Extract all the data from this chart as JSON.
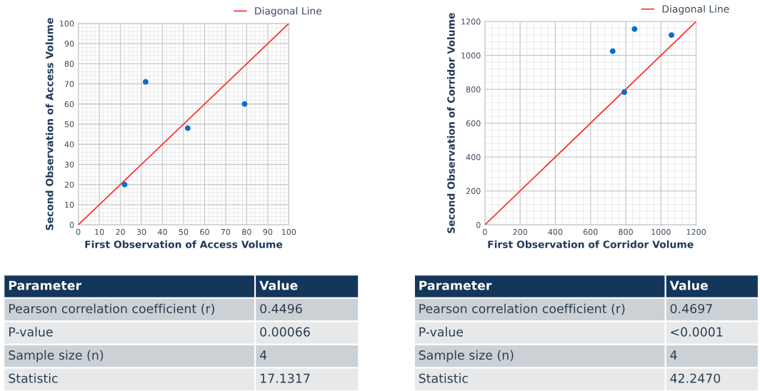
{
  "chart_data": [
    {
      "type": "scatter",
      "xlabel": "First Observation of Access Volume",
      "ylabel": "Second Observation of Access Volume",
      "xlim": [
        0,
        100
      ],
      "ylim": [
        0,
        100
      ],
      "xticks": [
        0,
        10,
        20,
        30,
        40,
        50,
        60,
        70,
        80,
        90,
        100
      ],
      "yticks": [
        0,
        10,
        20,
        30,
        40,
        50,
        60,
        70,
        80,
        90,
        100
      ],
      "grid": true,
      "legend": "top right",
      "series": [
        {
          "color": "#0a6ec8",
          "x": [
            22,
            32,
            52,
            79
          ],
          "values": [
            20,
            71,
            48,
            60
          ],
          "marker": "circle"
        },
        {
          "type": "line",
          "name": "Diagonal Line",
          "color": "#ff2a2a",
          "x": [
            0,
            100
          ],
          "values": [
            0,
            100
          ],
          "marker": "none"
        }
      ]
    },
    {
      "type": "scatter",
      "xlabel": "First Observation of Corridor Volume",
      "ylabel": "Second Observation of Corridor Volume",
      "xlim": [
        0,
        1200
      ],
      "ylim": [
        0,
        1200
      ],
      "xticks": [
        0,
        200,
        400,
        600,
        800,
        1000,
        1200
      ],
      "yticks": [
        0,
        200,
        400,
        600,
        800,
        1000,
        1200
      ],
      "grid": true,
      "legend": "top right",
      "series": [
        {
          "color": "#0a6ec8",
          "x": [
            726,
            792,
            850,
            1060
          ],
          "values": [
            1025,
            783,
            1155,
            1120
          ],
          "marker": "circle"
        },
        {
          "type": "line",
          "name": "Diagonal Line",
          "color": "#ff2a2a",
          "x": [
            0,
            1200
          ],
          "values": [
            0,
            1200
          ],
          "marker": "none"
        }
      ]
    },
    {
      "type": "other",
      "categories": [
        "Parameter",
        "Value"
      ],
      "annotations": [
        "Pearson correlation coefficient (r)",
        "0.4496",
        "P-value",
        "0.00066",
        "Sample size (n)",
        "4",
        "Statistic",
        "17.1317"
      ]
    },
    {
      "type": "other",
      "categories": [
        "Parameter",
        "Value"
      ],
      "annotations": [
        "Pearson correlation coefficient (r)",
        "0.4697",
        "P-value",
        "<0.0001",
        "Sample size (n)",
        "4",
        "Statistic",
        "42.2470"
      ]
    }
  ]
}
